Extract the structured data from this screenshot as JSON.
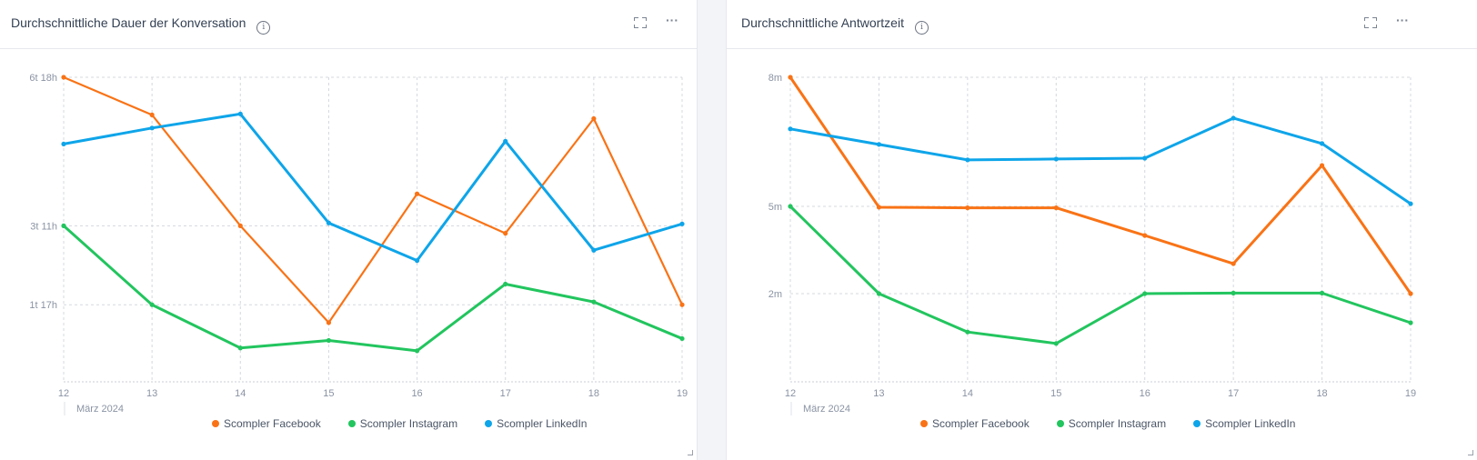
{
  "colors": {
    "facebook": "#f97316",
    "instagram": "#22c55e",
    "linkedin": "#0ea5e9",
    "grid": "#d5d8de"
  },
  "cards": [
    {
      "title": "Durchschnittliche Dauer der Konversation",
      "info_icon": "info-icon",
      "expand_icon": "expand-icon",
      "menu_icon": "more-horizontal-icon",
      "menu_label": "···"
    },
    {
      "title": "Durchschnittliche Antwortzeit",
      "info_icon": "info-icon",
      "expand_icon": "expand-icon",
      "menu_icon": "more-horizontal-icon",
      "menu_label": "···"
    }
  ],
  "chart_data": [
    {
      "type": "line",
      "title": "Durchschnittliche Dauer der Konversation",
      "xlabel": "März 2024",
      "ylabel": "",
      "unit": "hours",
      "categories": [
        "12",
        "13",
        "14",
        "15",
        "16",
        "17",
        "18",
        "19"
      ],
      "y_ticks": [
        {
          "value": 41,
          "label": "1t 17h"
        },
        {
          "value": 83,
          "label": "3t 11h"
        },
        {
          "value": 162,
          "label": "6t 18h"
        }
      ],
      "ylim": [
        0,
        162
      ],
      "grid": true,
      "legend_position": "bottom",
      "series": [
        {
          "name": "Scompler Facebook",
          "color_key": "facebook",
          "values": [
            162,
            142,
            83,
            31.5,
            100,
            79,
            140,
            41
          ]
        },
        {
          "name": "Scompler Instagram",
          "color_key": "instagram",
          "values": [
            83,
            41,
            18,
            22,
            16.5,
            52,
            42.5,
            23
          ]
        },
        {
          "name": "Scompler LinkedIn",
          "color_key": "linkedin",
          "values": [
            126.5,
            135,
            142.5,
            84.5,
            64.5,
            128,
            70,
            84
          ]
        }
      ]
    },
    {
      "type": "line",
      "title": "Durchschnittliche Antwortzeit",
      "xlabel": "März 2024",
      "ylabel": "",
      "unit": "minutes",
      "categories": [
        "12",
        "13",
        "14",
        "15",
        "16",
        "17",
        "18",
        "19"
      ],
      "y_ticks": [
        {
          "value": 2,
          "label": "2m"
        },
        {
          "value": 5,
          "label": "5m"
        },
        {
          "value": 8,
          "label": "8m"
        }
      ],
      "ylim": [
        0,
        8
      ],
      "grid": true,
      "legend_position": "bottom",
      "series": [
        {
          "name": "Scompler Facebook",
          "color_key": "facebook",
          "values": [
            8,
            4.97,
            4.95,
            4.95,
            4.0,
            3.03,
            5.95,
            2
          ]
        },
        {
          "name": "Scompler Instagram",
          "color_key": "instagram",
          "values": [
            5,
            2,
            1.13,
            0.87,
            2,
            2.02,
            2.02,
            1.34
          ]
        },
        {
          "name": "Scompler LinkedIn",
          "color_key": "linkedin",
          "values": [
            6.8,
            6.44,
            6.08,
            6.1,
            6.12,
            7.05,
            6.46,
            5.06
          ]
        }
      ]
    }
  ]
}
